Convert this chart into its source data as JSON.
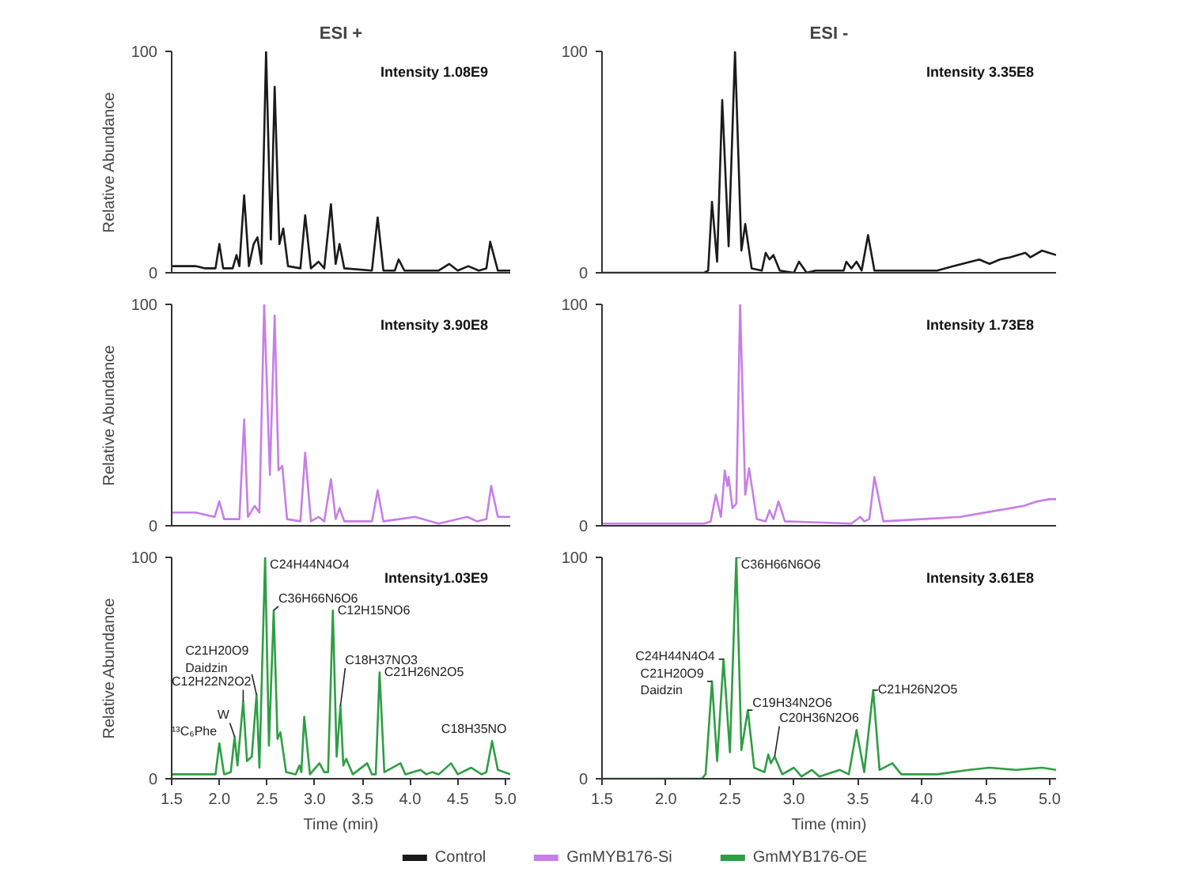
{
  "chart_data": [
    {
      "type": "line",
      "title": "ESI +",
      "ylabel": "Relative Abundance",
      "xlim": [
        1.5,
        5.05
      ],
      "ylim": [
        0,
        100
      ],
      "yticks": [
        0,
        100
      ],
      "tick_labels": "y",
      "legend": "bottom",
      "annotations": [
        "Intensity 1.08E9"
      ],
      "series": [
        {
          "name": "Control",
          "color": "#1a1a1a",
          "x": [
            1.5,
            1.75,
            1.85,
            1.96,
            2.0,
            2.04,
            2.14,
            2.18,
            2.21,
            2.26,
            2.31,
            2.36,
            2.4,
            2.44,
            2.49,
            2.54,
            2.58,
            2.63,
            2.67,
            2.72,
            2.85,
            2.9,
            2.96,
            3.04,
            3.1,
            3.17,
            3.22,
            3.26,
            3.31,
            3.6,
            3.66,
            3.72,
            3.84,
            3.88,
            3.94,
            4.3,
            4.41,
            4.5,
            4.61,
            4.72,
            4.8,
            4.84,
            4.92,
            5.05
          ],
          "values": [
            3,
            3,
            2,
            2,
            13,
            2,
            2,
            8,
            3,
            35,
            3,
            13,
            16,
            4,
            100,
            15,
            84,
            13,
            20,
            3,
            2,
            26,
            2,
            5,
            2,
            31,
            4,
            13,
            2,
            1,
            25,
            1,
            1,
            6,
            1,
            1,
            4,
            1,
            3,
            1,
            2,
            14,
            1,
            1
          ]
        }
      ]
    },
    {
      "type": "line",
      "title": "ESI -",
      "xlim": [
        1.5,
        5.05
      ],
      "ylim": [
        0,
        100
      ],
      "yticks": [
        0,
        100
      ],
      "tick_labels": "y",
      "legend": "bottom",
      "annotations": [
        "Intensity 3.35E8"
      ],
      "series": [
        {
          "name": "Control",
          "color": "#1a1a1a",
          "x": [
            1.5,
            2.3,
            2.33,
            2.36,
            2.4,
            2.44,
            2.49,
            2.54,
            2.59,
            2.62,
            2.67,
            2.75,
            2.78,
            2.81,
            2.84,
            2.89,
            3.0,
            3.04,
            3.1,
            3.17,
            3.39,
            3.41,
            3.45,
            3.49,
            3.53,
            3.58,
            3.63,
            4.12,
            4.25,
            4.45,
            4.53,
            4.61,
            4.69,
            4.81,
            4.85,
            4.94,
            5.05
          ],
          "values": [
            0,
            0,
            1,
            32,
            5,
            78,
            12,
            100,
            10,
            22,
            2,
            1,
            9,
            6,
            8,
            1,
            0,
            5,
            0,
            1,
            1,
            5,
            2,
            5,
            1,
            17,
            1,
            1,
            3,
            6,
            4,
            6,
            7,
            9,
            7,
            10,
            8
          ]
        }
      ]
    },
    {
      "type": "line",
      "ylabel": "Relative Abundance",
      "xlim": [
        1.5,
        5.05
      ],
      "ylim": [
        0,
        100
      ],
      "yticks": [
        0,
        100
      ],
      "tick_labels": "y",
      "legend": "bottom",
      "annotations": [
        "Intensity 3.90E8"
      ],
      "series": [
        {
          "name": "GmMYB176-Si",
          "color": "#c77ee8",
          "x": [
            1.5,
            1.75,
            1.95,
            2.0,
            2.05,
            2.21,
            2.26,
            2.3,
            2.37,
            2.42,
            2.47,
            2.53,
            2.58,
            2.62,
            2.66,
            2.71,
            2.85,
            2.9,
            2.96,
            3.04,
            3.1,
            3.17,
            3.22,
            3.26,
            3.31,
            3.6,
            3.66,
            3.72,
            4.05,
            4.3,
            4.6,
            4.7,
            4.8,
            4.85,
            4.92,
            5.05
          ],
          "values": [
            6,
            6,
            4,
            11,
            3,
            3,
            48,
            4,
            9,
            6,
            100,
            23,
            95,
            25,
            27,
            3,
            2,
            33,
            2,
            4,
            2,
            21,
            3,
            8,
            2,
            2,
            16,
            2,
            4,
            1,
            4,
            2,
            3,
            18,
            4,
            4
          ]
        }
      ]
    },
    {
      "type": "line",
      "xlim": [
        1.5,
        5.05
      ],
      "ylim": [
        0,
        100
      ],
      "yticks": [
        0,
        100
      ],
      "tick_labels": "y",
      "legend": "bottom",
      "annotations": [
        "Intensity 1.73E8"
      ],
      "series": [
        {
          "name": "GmMYB176-Si",
          "color": "#c77ee8",
          "x": [
            1.5,
            2.3,
            2.35,
            2.39,
            2.43,
            2.46,
            2.48,
            2.49,
            2.52,
            2.55,
            2.58,
            2.62,
            2.65,
            2.71,
            2.78,
            2.81,
            2.84,
            2.88,
            2.93,
            3.45,
            3.52,
            3.55,
            3.59,
            3.63,
            3.7,
            4.0,
            4.3,
            4.6,
            4.8,
            4.9,
            5.0,
            5.05
          ],
          "values": [
            1,
            1,
            2,
            14,
            4,
            25,
            18,
            22,
            8,
            10,
            100,
            14,
            26,
            3,
            2,
            7,
            3,
            11,
            2,
            1,
            4,
            2,
            3,
            22,
            2,
            3,
            4,
            7,
            9,
            11,
            12,
            12
          ]
        }
      ]
    },
    {
      "type": "line",
      "ylabel": "Relative Abundance",
      "xlabel": "Time (min)",
      "xlim": [
        1.5,
        5.05
      ],
      "ylim": [
        0,
        100
      ],
      "yticks": [
        0,
        100
      ],
      "xticks": [
        {
          "value": 1.5,
          "label": "1.5"
        },
        {
          "value": 2,
          "label": "2.0"
        },
        {
          "value": 2.5,
          "label": "2.5"
        },
        {
          "value": 3,
          "label": "3.0"
        },
        {
          "value": 3.5,
          "label": "3.5"
        },
        {
          "value": 4,
          "label": "4.0"
        },
        {
          "value": 4.5,
          "label": "4.5"
        },
        {
          "value": 5,
          "label": "5.0"
        }
      ],
      "legend": "bottom",
      "annotations": [
        "Intensity1.03E9",
        {
          "text": "¹³C₆Phe",
          "x": 2.0,
          "y": 16
        },
        {
          "text": "W",
          "x": 2.16,
          "y": 19
        },
        {
          "text": "C12H22N2O2",
          "x": 2.25,
          "y": 35
        },
        {
          "text": "C21H20O9\nDaidzin",
          "x": 2.39,
          "y": 38
        },
        {
          "text": "C24H44N4O4",
          "x": 2.48,
          "y": 100
        },
        {
          "text": "C36H66N6O6",
          "x": 2.57,
          "y": 76
        },
        {
          "text": "C12H15NO6",
          "x": 3.19,
          "y": 76
        },
        {
          "text": "C18H37NO3",
          "x": 3.27,
          "y": 33
        },
        {
          "text": "C21H26N2O5",
          "x": 3.68,
          "y": 48
        },
        {
          "text": "C18H35NO",
          "x": 4.86,
          "y": 17
        }
      ],
      "series": [
        {
          "name": "GmMYB176-OE",
          "color": "#2e9e44",
          "x": [
            1.5,
            1.8,
            1.96,
            2.0,
            2.05,
            2.12,
            2.16,
            2.19,
            2.25,
            2.29,
            2.34,
            2.39,
            2.42,
            2.48,
            2.52,
            2.57,
            2.61,
            2.64,
            2.7,
            2.8,
            2.84,
            2.86,
            2.89,
            2.95,
            3.05,
            3.1,
            3.14,
            3.19,
            3.23,
            3.27,
            3.3,
            3.33,
            3.4,
            3.55,
            3.6,
            3.64,
            3.68,
            3.73,
            3.9,
            3.95,
            4.11,
            4.17,
            4.23,
            4.3,
            4.43,
            4.5,
            4.64,
            4.75,
            4.8,
            4.86,
            4.92,
            5.05
          ],
          "values": [
            2,
            2,
            2,
            16,
            2,
            3,
            19,
            6,
            35,
            8,
            10,
            38,
            5,
            100,
            15,
            76,
            18,
            21,
            3,
            2,
            6,
            3,
            28,
            2,
            7,
            3,
            3,
            76,
            10,
            33,
            6,
            9,
            2,
            7,
            2,
            2,
            48,
            3,
            7,
            2,
            4,
            2,
            3,
            2,
            7,
            2,
            5,
            2,
            3,
            17,
            4,
            2
          ]
        }
      ]
    },
    {
      "type": "line",
      "xlabel": "Time (min)",
      "xlim": [
        1.5,
        5.05
      ],
      "ylim": [
        0,
        100
      ],
      "yticks": [
        0,
        100
      ],
      "xticks": [
        {
          "value": 1.5,
          "label": "1.5"
        },
        {
          "value": 2,
          "label": "2.0"
        },
        {
          "value": 2.5,
          "label": "2.5"
        },
        {
          "value": 3,
          "label": "3.0"
        },
        {
          "value": 3.5,
          "label": "3.5"
        },
        {
          "value": 4,
          "label": "4.0"
        },
        {
          "value": 4.5,
          "label": "4.5"
        },
        {
          "value": 5,
          "label": "5.0"
        }
      ],
      "legend": "bottom",
      "annotations": [
        "Intensity 3.61E8",
        {
          "text": "C21H20O9\nDaidzin",
          "x": 2.36,
          "y": 44
        },
        {
          "text": "C24H44N4O4",
          "x": 2.45,
          "y": 54
        },
        {
          "text": "C36H66N6O6",
          "x": 2.55,
          "y": 100
        },
        {
          "text": "C19H34N2O6",
          "x": 2.64,
          "y": 31
        },
        {
          "text": "C20H36N2O6",
          "x": 2.85,
          "y": 10
        },
        {
          "text": "C21H26N2O5",
          "x": 3.62,
          "y": 40
        }
      ],
      "series": [
        {
          "name": "GmMYB176-OE",
          "color": "#2e9e44",
          "x": [
            1.5,
            2.28,
            2.31,
            2.36,
            2.4,
            2.45,
            2.5,
            2.55,
            2.59,
            2.64,
            2.69,
            2.77,
            2.8,
            2.82,
            2.85,
            2.91,
            3.0,
            3.06,
            3.14,
            3.2,
            3.36,
            3.43,
            3.49,
            3.55,
            3.62,
            3.67,
            3.77,
            3.84,
            4.12,
            4.37,
            4.53,
            4.74,
            4.94,
            5.05
          ],
          "values": [
            0,
            0,
            2,
            44,
            8,
            54,
            12,
            100,
            13,
            31,
            5,
            3,
            11,
            7,
            10,
            2,
            5,
            1,
            4,
            1,
            4,
            2,
            22,
            3,
            40,
            4,
            7,
            2,
            2,
            4,
            5,
            4,
            5,
            4
          ]
        }
      ]
    }
  ]
}
